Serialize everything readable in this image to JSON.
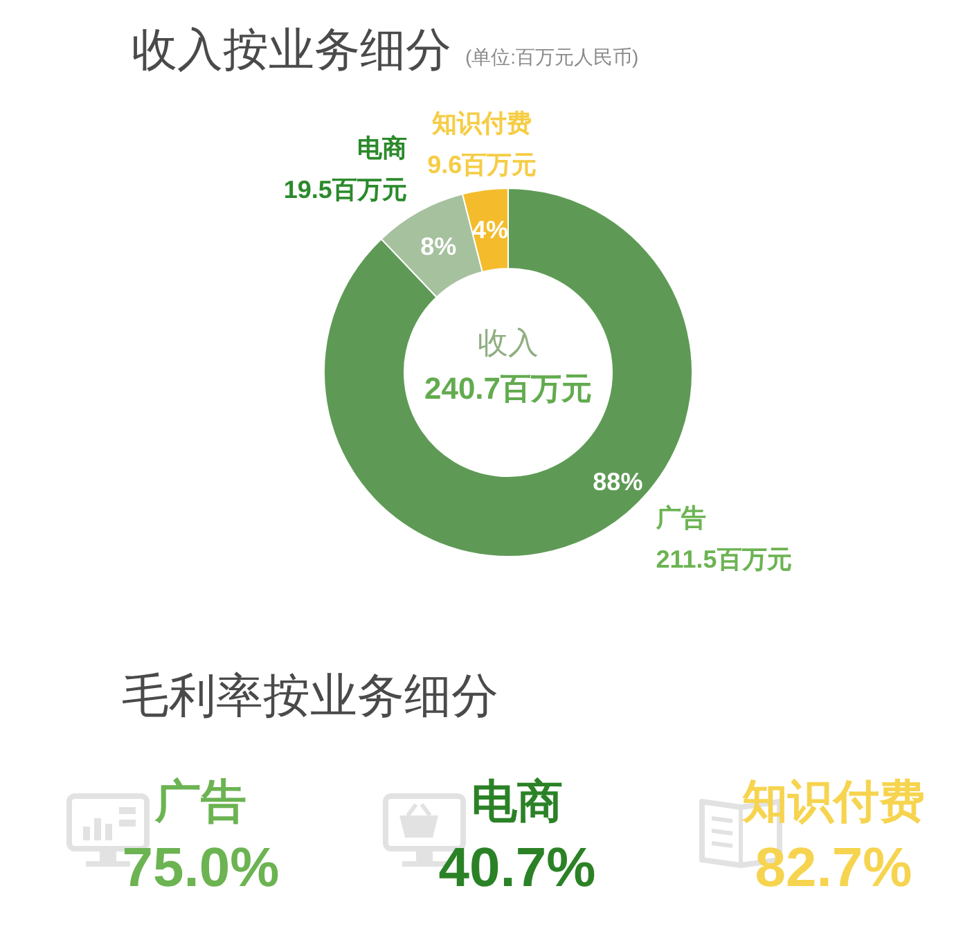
{
  "chart_data": [
    {
      "type": "donut",
      "title": "收入按业务细分",
      "subtitle": "(单位:百万元人民币)",
      "categories": [
        "广告",
        "电商",
        "知识付费"
      ],
      "values": [
        211.5,
        19.5,
        9.6
      ],
      "colors": [
        "#5e9a55",
        "#a6c19e",
        "#f4bc2c"
      ],
      "value_labels": [
        "211.5百万元",
        "19.5百万元",
        "9.6百万元"
      ],
      "annotations": [
        {
          "text": "88%",
          "x": "广告"
        },
        {
          "text": "8%",
          "x": "电商"
        },
        {
          "text": "4%",
          "x": "知识付费"
        },
        "收入",
        "240.7百万元"
      ]
    },
    {
      "type": "other",
      "title": "毛利率按业务细分",
      "categories": [
        "广告",
        "电商",
        "知识付费"
      ],
      "annotations": [
        "75.0%",
        "40.7%",
        "82.7%"
      ],
      "colors": [
        "#6cb352",
        "#2b8226",
        "#f6d44f"
      ]
    }
  ]
}
